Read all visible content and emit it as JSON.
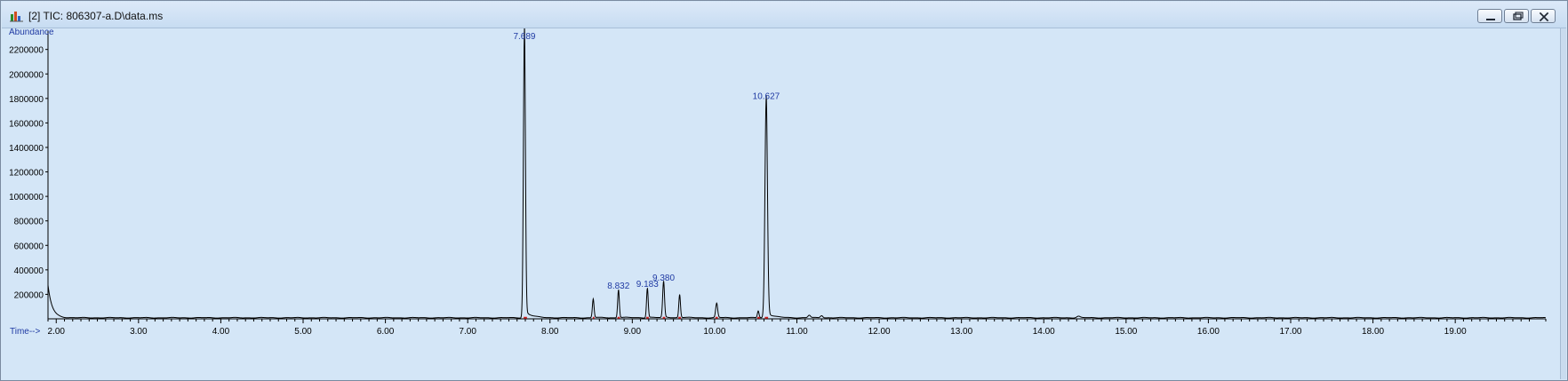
{
  "window": {
    "title": "[2] TIC: 806307-a.D\\data.ms",
    "icon": "chromatogram-app-icon",
    "buttons": [
      "minimize-icon",
      "restore-icon",
      "close-icon"
    ]
  },
  "chart_data": {
    "type": "line",
    "title": "",
    "xlabel": "Time-->",
    "ylabel": "Abundance",
    "xlim": [
      1.9,
      20.1
    ],
    "ylim": [
      0,
      2350000
    ],
    "grid": false,
    "x_ticks": [
      2,
      3,
      4,
      5,
      6,
      7,
      8,
      9,
      10,
      11,
      12,
      13,
      14,
      15,
      16,
      17,
      18,
      19
    ],
    "x_tick_labels": [
      "2.00",
      "3.00",
      "4.00",
      "5.00",
      "6.00",
      "7.00",
      "8.00",
      "9.00",
      "10.00",
      "11.00",
      "12.00",
      "13.00",
      "14.00",
      "15.00",
      "16.00",
      "17.00",
      "18.00",
      "19.00"
    ],
    "y_ticks": [
      200000,
      400000,
      600000,
      800000,
      1000000,
      1200000,
      1400000,
      1600000,
      1800000,
      2000000,
      2200000
    ],
    "y_tick_labels": [
      "200000",
      "400000",
      "600000",
      "800000",
      "1000000",
      "1200000",
      "1400000",
      "1600000",
      "1800000",
      "2000000",
      "2200000"
    ],
    "colors": {
      "background": "#d4e6f7",
      "trace": "#000000",
      "axis": "#000000",
      "labels": "#1f3aa3",
      "baseline_marker": "#cc1f1f"
    },
    "baseline": 9000,
    "peaks": [
      {
        "rt": 7.689,
        "height": 2330000,
        "width": 0.012,
        "label": "7.689"
      },
      {
        "rt": 8.525,
        "height": 150000,
        "width": 0.01,
        "label": ""
      },
      {
        "rt": 8.832,
        "height": 225000,
        "width": 0.01,
        "label": "8.832"
      },
      {
        "rt": 9.183,
        "height": 240000,
        "width": 0.01,
        "label": "9.183"
      },
      {
        "rt": 9.38,
        "height": 290000,
        "width": 0.011,
        "label": "9.380"
      },
      {
        "rt": 9.575,
        "height": 185000,
        "width": 0.01,
        "label": ""
      },
      {
        "rt": 10.025,
        "height": 115000,
        "width": 0.012,
        "label": ""
      },
      {
        "rt": 10.53,
        "height": 55000,
        "width": 0.01,
        "label": ""
      },
      {
        "rt": 10.627,
        "height": 1775000,
        "width": 0.015,
        "label": "10.627"
      },
      {
        "rt": 11.15,
        "height": 20000,
        "width": 0.015,
        "label": ""
      },
      {
        "rt": 11.3,
        "height": 18000,
        "width": 0.015,
        "label": ""
      },
      {
        "rt": 14.42,
        "height": 12000,
        "width": 0.02,
        "label": ""
      }
    ],
    "baseline_segments": [
      [
        7.68,
        7.72
      ],
      [
        8.52,
        8.54
      ],
      [
        8.82,
        8.85
      ],
      [
        9.17,
        9.2
      ],
      [
        9.37,
        9.4
      ],
      [
        9.56,
        9.59
      ],
      [
        10.01,
        10.04
      ],
      [
        10.52,
        10.55
      ],
      [
        10.61,
        10.65
      ]
    ]
  }
}
